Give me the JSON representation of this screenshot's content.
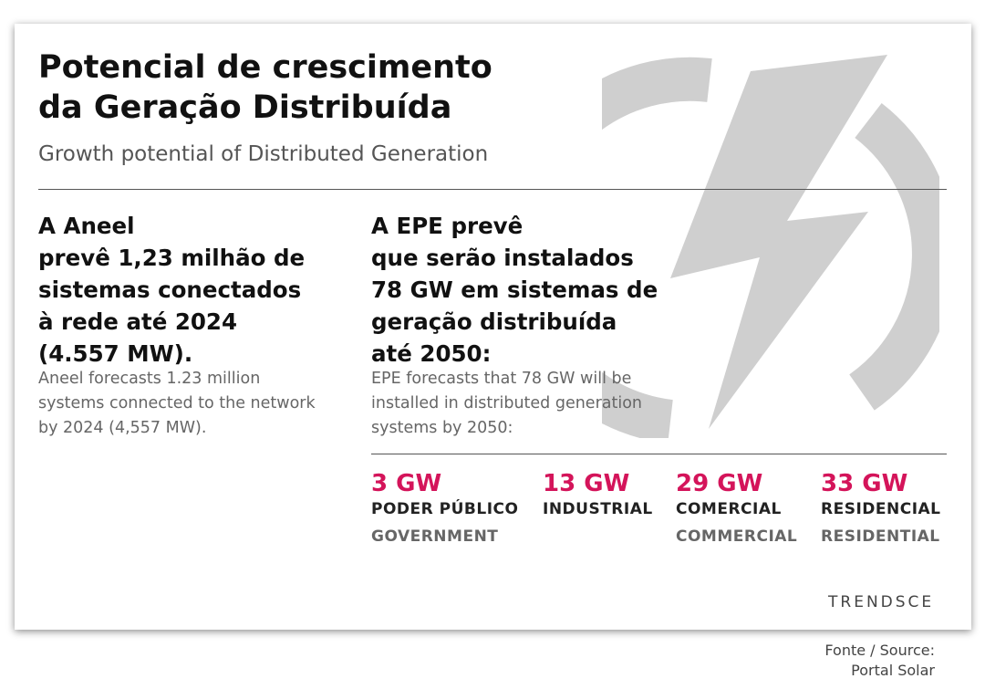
{
  "title": {
    "line1": "Potencial de crescimento",
    "line2": "da Geração Distribuída"
  },
  "subtitle": "Growth potential of Distributed Generation",
  "aneel": {
    "heading": [
      "A Aneel",
      "prevê 1,23 milhão de",
      "sistemas conectados",
      "à rede até 2024",
      "(4.557 MW)."
    ],
    "english": [
      "Aneel forecasts 1.23 million",
      "systems connected to the network",
      "by 2024 (4,557 MW)."
    ]
  },
  "epe": {
    "heading": [
      "A EPE prevê",
      "que serão instalados",
      "78 GW em sistemas de",
      "geração distribuída",
      "até 2050:"
    ],
    "english": [
      "EPE forecasts that 78 GW will be",
      "installed in distributed generation",
      "systems by 2050:"
    ]
  },
  "stats": [
    {
      "value": "3 GW",
      "pt": "PODER PÚBLICO",
      "en": "GOVERNMENT"
    },
    {
      "value": "13 GW",
      "pt": "INDUSTRIAL",
      "en": ""
    },
    {
      "value": "29 GW",
      "pt": "COMERCIAL",
      "en": "COMMERCIAL"
    },
    {
      "value": "33 GW",
      "pt": "RESIDENCIAL",
      "en": "RESIDENTIAL"
    }
  ],
  "brand": "TRENDSCE",
  "source": {
    "label": "Fonte / Source:",
    "name": "Portal Solar"
  },
  "colors": {
    "accent": "#d4145a",
    "icon": "#cfcfcf"
  },
  "icon": "lightning-power-icon"
}
